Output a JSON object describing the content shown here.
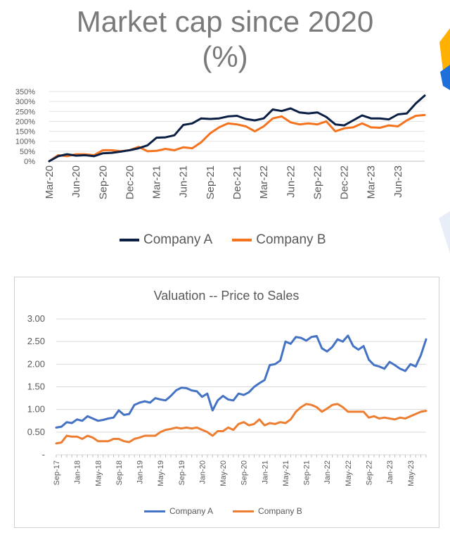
{
  "chart_data": [
    {
      "type": "line",
      "title": "Market cap since 2020",
      "subtitle": "(%)",
      "xlabel": "",
      "ylabel": "",
      "ylim": [
        0,
        350
      ],
      "y_ticks": [
        "0%",
        "50%",
        "100%",
        "150%",
        "200%",
        "250%",
        "300%",
        "350%"
      ],
      "x_ticks": [
        "Mar-20",
        "Jun-20",
        "Sep-20",
        "Dec-20",
        "Mar-21",
        "Jun-21",
        "Sep-21",
        "Dec-21",
        "Mar-22",
        "Jun-22",
        "Sep-22",
        "Dec-22",
        "Mar-23",
        "Jun-23"
      ],
      "legend_position": "bottom",
      "series": [
        {
          "name": "Company A",
          "color": "#0b1f44",
          "values": [
            0,
            25,
            35,
            28,
            30,
            25,
            40,
            42,
            48,
            55,
            65,
            80,
            118,
            120,
            130,
            182,
            190,
            215,
            212,
            215,
            225,
            228,
            212,
            205,
            215,
            260,
            252,
            265,
            245,
            240,
            245,
            222,
            185,
            180,
            205,
            230,
            215,
            215,
            210,
            235,
            240,
            290,
            330
          ]
        },
        {
          "name": "Company B",
          "color": "#f5731e",
          "values": [
            0,
            30,
            25,
            35,
            35,
            30,
            55,
            55,
            50,
            55,
            72,
            50,
            52,
            62,
            55,
            70,
            65,
            95,
            140,
            170,
            190,
            185,
            175,
            150,
            175,
            215,
            225,
            195,
            185,
            190,
            185,
            200,
            150,
            165,
            170,
            190,
            170,
            168,
            180,
            175,
            205,
            228,
            232
          ]
        }
      ]
    },
    {
      "type": "line",
      "title": "Valuation -- Price to Sales",
      "xlabel": "",
      "ylabel": "",
      "ylim": [
        0,
        3
      ],
      "y_ticks": [
        "-",
        "0.50",
        "1.00",
        "1.50",
        "2.00",
        "2.50",
        "3.00"
      ],
      "x_ticks": [
        "Sep-17",
        "Jan-18",
        "May-18",
        "Sep-18",
        "Jan-19",
        "May-19",
        "Sep-19",
        "Jan-20",
        "May-20",
        "Sep-20",
        "Jan-21",
        "May-21",
        "Sep-21",
        "Jan-22",
        "May-22",
        "Sep-22",
        "Jan-23",
        "May-23"
      ],
      "legend_position": "bottom",
      "series": [
        {
          "name": "Company A",
          "color": "#4472c4",
          "values": [
            0.6,
            0.62,
            0.72,
            0.7,
            0.78,
            0.75,
            0.85,
            0.8,
            0.75,
            0.77,
            0.8,
            0.82,
            0.98,
            0.88,
            0.9,
            1.1,
            1.15,
            1.18,
            1.15,
            1.25,
            1.22,
            1.2,
            1.3,
            1.42,
            1.48,
            1.47,
            1.42,
            1.4,
            1.28,
            1.35,
            0.98,
            1.2,
            1.3,
            1.22,
            1.2,
            1.35,
            1.32,
            1.38,
            1.5,
            1.58,
            1.65,
            1.98,
            2.0,
            2.08,
            2.5,
            2.45,
            2.6,
            2.58,
            2.52,
            2.6,
            2.62,
            2.35,
            2.28,
            2.38,
            2.55,
            2.5,
            2.63,
            2.4,
            2.32,
            2.4,
            2.1,
            1.98,
            1.95,
            1.9,
            2.05,
            1.98,
            1.9,
            1.85,
            2.0,
            1.95,
            2.2,
            2.55
          ]
        },
        {
          "name": "Company B",
          "color": "#ed7d31",
          "values": [
            0.25,
            0.27,
            0.42,
            0.4,
            0.4,
            0.35,
            0.42,
            0.38,
            0.3,
            0.3,
            0.3,
            0.35,
            0.35,
            0.3,
            0.28,
            0.35,
            0.38,
            0.42,
            0.42,
            0.42,
            0.5,
            0.55,
            0.57,
            0.6,
            0.58,
            0.6,
            0.58,
            0.6,
            0.55,
            0.5,
            0.42,
            0.52,
            0.52,
            0.6,
            0.55,
            0.68,
            0.72,
            0.65,
            0.68,
            0.78,
            0.65,
            0.7,
            0.68,
            0.72,
            0.7,
            0.78,
            0.95,
            1.05,
            1.12,
            1.1,
            1.05,
            0.95,
            1.02,
            1.1,
            1.12,
            1.05,
            0.95,
            0.95,
            0.95,
            0.95,
            0.82,
            0.85,
            0.8,
            0.82,
            0.8,
            0.78,
            0.82,
            0.8,
            0.85,
            0.9,
            0.95,
            0.97
          ]
        }
      ]
    }
  ]
}
